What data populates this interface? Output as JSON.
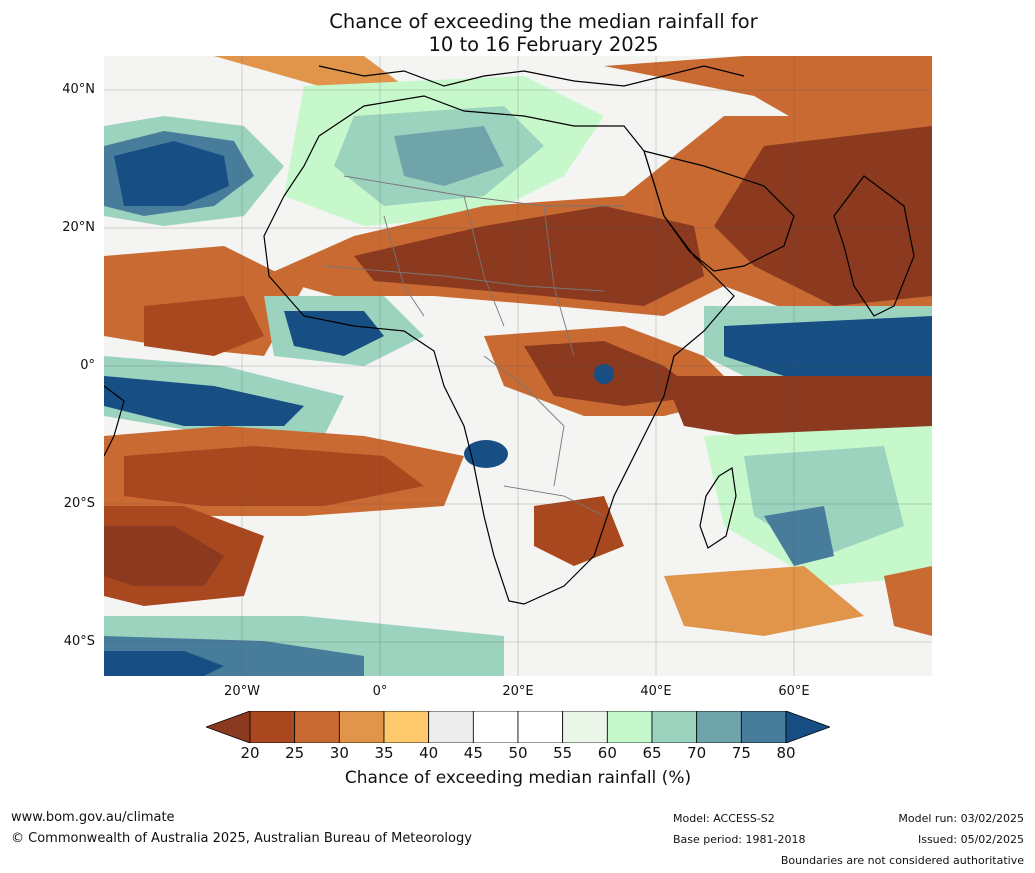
{
  "title": {
    "line1": "Chance of exceeding the median rainfall for",
    "line2": "10 to 16 February 2025"
  },
  "axes": {
    "lat_labels": [
      "40°N",
      "20°N",
      "0°",
      "20°S",
      "40°S"
    ],
    "lon_labels": [
      "20°W",
      "0°",
      "20°E",
      "40°E",
      "60°E"
    ]
  },
  "colorbar": {
    "ticks": [
      "20",
      "25",
      "30",
      "35",
      "40",
      "45",
      "50",
      "55",
      "60",
      "65",
      "70",
      "75",
      "80"
    ],
    "label": "Chance of exceeding median rainfall (%)",
    "colors": [
      "#8b3a1f",
      "#a9471f",
      "#c96a32",
      "#e0954b",
      "#fdc96c",
      "#ececec",
      "#ffffff",
      "#ffffff",
      "#e9f6e8",
      "#c6f8cb",
      "#9bd3bf",
      "#6fa5aa",
      "#487c9b",
      "#174f84"
    ],
    "under_color": "#8b3a1f",
    "over_color": "#174f84"
  },
  "footer": {
    "website": "www.bom.gov.au/climate",
    "copyright": "© Commonwealth of Australia 2025, Australian Bureau of Meteorology",
    "model": "Model: ACCESS-S2",
    "base_period": "Base period: 1981-2018",
    "model_run": "Model run: 03/02/2025",
    "issued": "Issued: 05/02/2025",
    "disclaimer": "Boundaries are not considered authoritative"
  }
}
